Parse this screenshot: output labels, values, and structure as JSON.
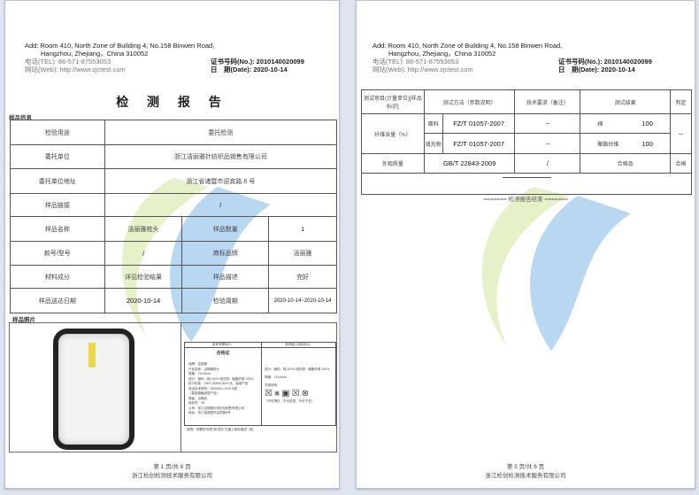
{
  "header": {
    "address_line1": "Add: Room 410, North Zone of Building 4, No.158 Binwen Road,",
    "address_line2": "Hangzhou, Zhejiang，China          310052",
    "tel": "电话(TEL): 86-571-87553053",
    "web": "网站(Web): http://www.zjctest.com",
    "cert_no": "证书号码(No.): 2010140020099",
    "date": "日　期(Date): 2020-10-14"
  },
  "page1": {
    "title": "检 测 报 告",
    "section_sample_info": "样品信息",
    "rows": [
      [
        "检验用途",
        "委托检测"
      ],
      [
        "委托单位",
        "浙江洁丽雅针纺织品销售有限公司"
      ],
      [
        "委托单位地址",
        "浙江省诸暨市迎宾路 6 号"
      ],
      [
        "样品链接",
        "/"
      ]
    ],
    "rows4": [
      [
        "样品名称",
        "洁丽雅枕头",
        "样品数量",
        "1"
      ],
      [
        "款号/型号",
        "/",
        "商标品牌",
        "洁丽雅"
      ],
      [
        "材料成分",
        "详见检验结果",
        "样品描述",
        "完好"
      ],
      [
        "样品送达日期",
        "2020-10-14",
        "检验周期",
        "2020-10-14~2020-10-14"
      ]
    ],
    "section_photo": "样品照片",
    "label_card": {
      "col1_head": "参考吊牌标示：",
      "col2_head": "参考缝入商标标示：",
      "title": "合格证",
      "left_lines": [
        "品牌：洁丽雅",
        "产品名称：洁丽雅枕头",
        "规格：74×45cm",
        "成分：面料：棉 100% 填充物：聚酯纤维 100%",
        "执行标准：GB/T 22843-2009 优，装填产品",
        "安全技术类别：GB18401-2010 B类",
        "（直接接触皮肤产品）",
        "等级：合格品",
        "检验员：08",
        "公司：浙江洁丽雅针纺织品销售有限公司",
        "地址：浙江省诸暨市迎宾路6号"
      ],
      "right_lines": [
        "成分：面料：棉 100% 填充物：聚酯纤维 100%",
        "规格：74×45cm",
        "洗涤说明：",
        "（不可漂白、不可熨烫、不可干洗）"
      ],
      "note": "说明：吊牌的“标签”和“成分”与缝入商标描述一致。"
    },
    "footer_page": "第 1 页/共 6 页",
    "footer_company": "浙江检创检测技术服务有限公司"
  },
  "page2": {
    "table_header": [
      "测试项目(计量单位)[样品标识]",
      "测试方法（参数说明）",
      "技术要求（备注）",
      "测试结果",
      "判定"
    ],
    "fiber": {
      "item": "纤维含量（%）",
      "parts": [
        {
          "part": "面料",
          "method": "FZ/T 01057-2007",
          "req": "--",
          "fiber": "棉",
          "value": "100"
        },
        {
          "part": "填充物",
          "method": "FZ/T 01057-2007",
          "req": "--",
          "fiber": "聚酯纤维",
          "value": "100"
        }
      ],
      "verdict": "--"
    },
    "appearance": {
      "item": "外观质量",
      "method": "GB/T 22843-2009",
      "req": "/",
      "result": "合格品",
      "verdict": "合格"
    },
    "end_text": "======= 检测报告结束 =======",
    "footer_page": "第 5 页/共 6 页",
    "footer_company": "浙江检创检测技术服务有限公司"
  },
  "colors": {
    "watermark_blue": "#3d8fd8",
    "watermark_green": "#b8d86a"
  }
}
